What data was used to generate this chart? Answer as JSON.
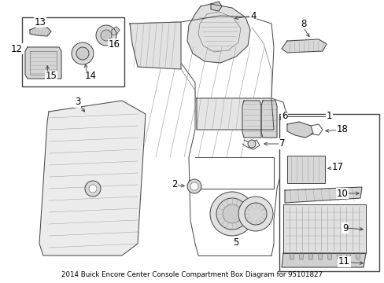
{
  "title": "2014 Buick Encore Center Console Compartment Box Diagram for 95101827",
  "bg_color": "#ffffff",
  "fig_width": 4.89,
  "fig_height": 3.6,
  "dpi": 100,
  "label_fontsize": 8.5,
  "line_color": "#333333",
  "label_color": "#000000"
}
